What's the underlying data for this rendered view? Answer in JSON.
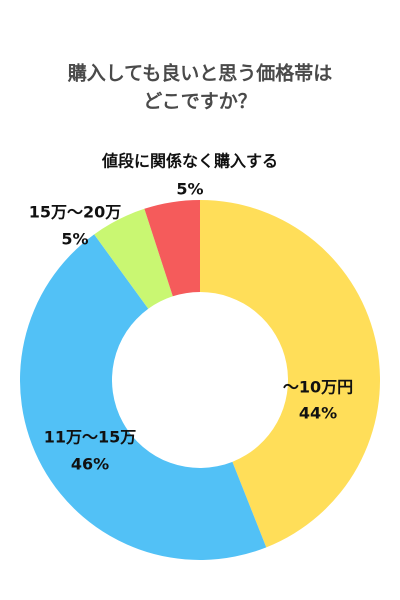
{
  "chart_data": {
    "type": "donut",
    "title_lines": [
      "購入しても良いと思う価格帯は",
      "どこですか？"
    ],
    "categories": [
      "～10万円",
      "11万～15万",
      "15万～20万",
      "値段に関係なく購入する"
    ],
    "values": [
      44,
      46,
      5,
      5
    ],
    "value_labels": [
      "44%",
      "46%",
      "5%",
      "5%"
    ],
    "colors": [
      "#ffde59",
      "#52c1f6",
      "#c9f772",
      "#f55b5b"
    ]
  }
}
